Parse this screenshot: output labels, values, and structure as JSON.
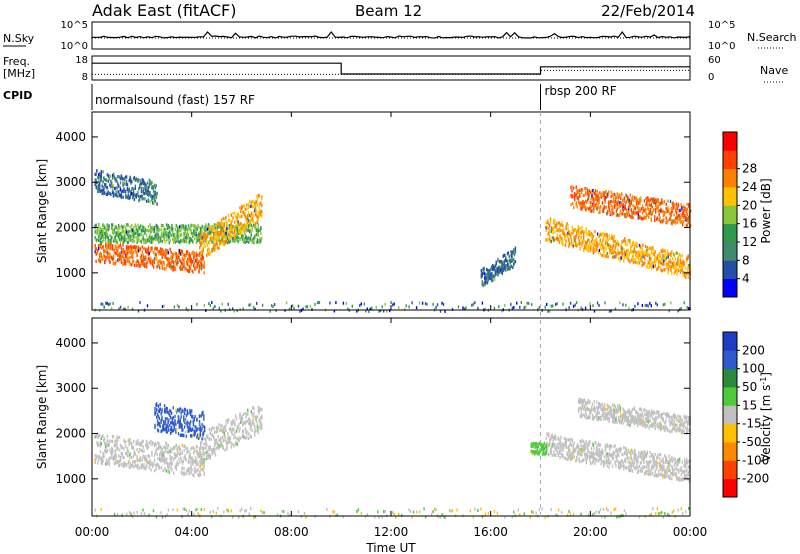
{
  "header": {
    "radar": "Adak East (fitACF)",
    "beam": "Beam 12",
    "date": "22/Feb/2014"
  },
  "status_panel": {
    "nsky_label": "N.Sky",
    "nsearch_label": "N.Search",
    "log_ticks_left": [
      "10^5",
      "10^0"
    ],
    "log_ticks_right": [
      "10^5",
      "10^0"
    ],
    "freq_label_1": "Freq.",
    "freq_label_2": "[MHz]",
    "freq_ticks": [
      "18",
      "8"
    ],
    "nave_label": "Nave",
    "nave_ticks": [
      "60",
      "0"
    ],
    "cpid_label": "CPID",
    "cpid_modes": [
      {
        "name": "normalsound (fast) 157 RF",
        "start": 0.0
      },
      {
        "name": "rbsp 200 RF",
        "start": 18.0
      }
    ],
    "freq_steps": [
      {
        "start": 0.0,
        "end": 10.0,
        "value": 15.0
      },
      {
        "start": 10.0,
        "end": 18.0,
        "value": 10.5
      },
      {
        "start": 18.0,
        "end": 24.0,
        "value": 13.5
      }
    ]
  },
  "axes": {
    "ylabel": "Slant Range [km]",
    "xlabel": "Time UT",
    "xticks": [
      "00:00",
      "04:00",
      "08:00",
      "12:00",
      "16:00",
      "20:00",
      "00:00"
    ],
    "yticks": [
      "1000",
      "2000",
      "3000",
      "4000"
    ],
    "xlim": [
      0,
      24
    ],
    "ylim": [
      180,
      4550
    ]
  },
  "power_scale": {
    "title": "Power [dB]",
    "ticks": [
      "4",
      "8",
      "12",
      "16",
      "20",
      "24",
      "28"
    ],
    "colors": [
      "#0000ff",
      "#254ea5",
      "#3f8b6e",
      "#2e9a4e",
      "#88c83a",
      "#ffc200",
      "#ff8000",
      "#ff4000",
      "#ff0000"
    ]
  },
  "velocity_scale": {
    "title": "Velocity [m s^-1]",
    "ticks": [
      "200",
      "100",
      "50",
      "15",
      "-15",
      "-50",
      "-100",
      "-200"
    ],
    "colors": [
      "#1e3cc8",
      "#2e5ad0",
      "#2a8a3a",
      "#4ecb3a",
      "#c0c0c0",
      "#ffc000",
      "#ff8a00",
      "#ff4000",
      "#ff0000"
    ]
  },
  "chart_data": [
    {
      "type": "heatmap",
      "title": "Power [dB]",
      "ylabel": "Slant Range [km]",
      "xlim": [
        0,
        24
      ],
      "ylim": [
        180,
        4550
      ],
      "bands": [
        {
          "start": 0.1,
          "end": 4.5,
          "center": [
            1500,
            1250
          ],
          "width": 450,
          "level": 28
        },
        {
          "start": 0.1,
          "end": 6.8,
          "center": [
            1900,
            1900
          ],
          "width": 400,
          "level": 16
        },
        {
          "start": 0.1,
          "end": 2.6,
          "center": [
            3050,
            2800
          ],
          "width": 500,
          "level": 8
        },
        {
          "start": 4.3,
          "end": 6.8,
          "center": [
            1600,
            2500
          ],
          "width": 600,
          "level": 24
        },
        {
          "start": 18.2,
          "end": 24.0,
          "center": [
            2000,
            1150
          ],
          "width": 500,
          "level": 24
        },
        {
          "start": 19.2,
          "end": 24.0,
          "center": [
            2700,
            2300
          ],
          "width": 500,
          "level": 28
        },
        {
          "start": 15.6,
          "end": 17.0,
          "center": [
            900,
            1400
          ],
          "width": 400,
          "level": 8
        }
      ],
      "ground_scatter": {
        "start": 0.1,
        "end": 24.0,
        "range": [
          180,
          380
        ]
      }
    },
    {
      "type": "heatmap",
      "title": "Velocity [m s^-1]",
      "ylabel": "Slant Range [km]",
      "xlim": [
        0,
        24
      ],
      "ylim": [
        180,
        4550
      ],
      "bands": [
        {
          "start": 0.1,
          "end": 4.5,
          "center": [
            1700,
            1400
          ],
          "width": 650,
          "level": 0
        },
        {
          "start": 4.3,
          "end": 6.8,
          "center": [
            1700,
            2400
          ],
          "width": 650,
          "level": 0
        },
        {
          "start": 2.5,
          "end": 4.5,
          "center": [
            2400,
            2200
          ],
          "width": 600,
          "level": 180
        },
        {
          "start": 18.2,
          "end": 24.0,
          "center": [
            1800,
            1200
          ],
          "width": 500,
          "level": 0
        },
        {
          "start": 19.5,
          "end": 24.0,
          "center": [
            2600,
            2200
          ],
          "width": 400,
          "level": 0
        },
        {
          "start": 17.6,
          "end": 18.2,
          "center": [
            1700,
            1700
          ],
          "width": 250,
          "level": 30
        }
      ],
      "ground_scatter": {
        "start": 0.1,
        "end": 24.0,
        "range": [
          180,
          380
        ]
      }
    }
  ]
}
